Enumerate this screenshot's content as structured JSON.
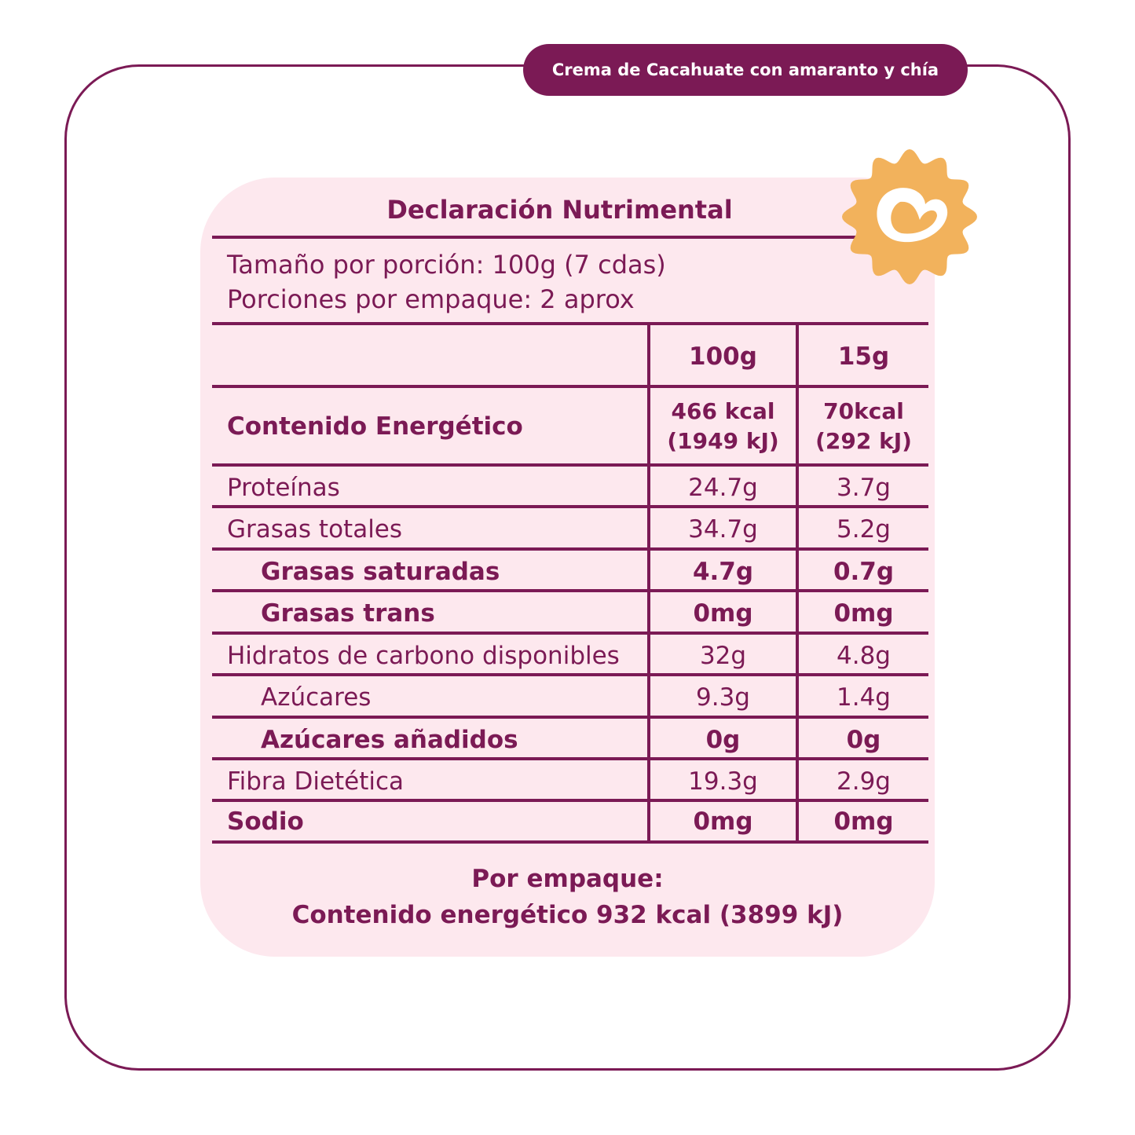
{
  "product_tag": "Crema de Cacahuate con amaranto y chía",
  "title": "Declaración Nutrimental",
  "serving_size": "Tamaño por porción: 100g (7 cdas)",
  "servings_per_package": "Porciones por empaque: 2 aprox",
  "columns": [
    "",
    "100g",
    "15g"
  ],
  "energy": {
    "label": "Contenido Energético",
    "col1_line1": "466 kcal",
    "col1_line2": "(1949 kJ)",
    "col2_line1": "70kcal",
    "col2_line2": "(292 kJ)"
  },
  "rows": [
    {
      "label": "Proteínas",
      "v1": "24.7g",
      "v2": "3.7g"
    },
    {
      "label": "Grasas totales",
      "v1": "34.7g",
      "v2": "5.2g"
    },
    {
      "label": "Grasas saturadas",
      "v1": "4.7g",
      "v2": "0.7g"
    },
    {
      "label": "Grasas trans",
      "v1": "0mg",
      "v2": "0mg"
    },
    {
      "label": "Hidratos de carbono disponibles",
      "v1": "32g",
      "v2": "4.8g"
    },
    {
      "label": "Azúcares",
      "v1": "9.3g",
      "v2": "1.4g"
    },
    {
      "label": "Azúcares añadidos",
      "v1": "0g",
      "v2": "0g"
    },
    {
      "label": "Fibra Dietética",
      "v1": "19.3g",
      "v2": "2.9g"
    },
    {
      "label": "Sodio",
      "v1": "0mg",
      "v2": "0mg"
    }
  ],
  "footer": {
    "line1": "Por empaque:",
    "line2": "Contenido energético 932 kcal (3899 kJ)"
  },
  "colors": {
    "primary": "#7b1a55",
    "panel": "#fde8ee",
    "badge": "#f2b25c"
  },
  "icons": [
    "heart-badge-icon"
  ]
}
